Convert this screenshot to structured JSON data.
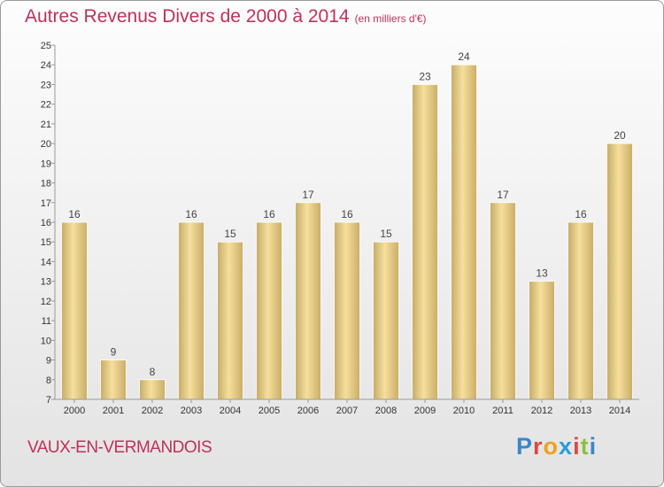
{
  "header": {
    "title": "Autres Revenus Divers de 2000 à 2014",
    "subtitle": "(en milliers d'€)"
  },
  "footer": {
    "town": "VAUX-EN-VERMANDOIS",
    "logo": "Proxiti"
  },
  "colors": {
    "title": "#c0305a",
    "bar_light": "#f6df9c",
    "bar_dark": "#c5ab67",
    "logo_letters": [
      "#3b86c8",
      "#e0473b",
      "#f0a020",
      "#2a9cd8",
      "#e0473b",
      "#8cc13f",
      "#3b86c8"
    ]
  },
  "chart_data": {
    "type": "bar",
    "title": "Autres Revenus Divers de 2000 à 2014",
    "subtitle": "(en milliers d'€)",
    "categories": [
      "2000",
      "2001",
      "2002",
      "2003",
      "2004",
      "2005",
      "2006",
      "2007",
      "2008",
      "2009",
      "2010",
      "2011",
      "2012",
      "2013",
      "2014"
    ],
    "values": [
      16,
      9,
      8,
      16,
      15,
      16,
      17,
      16,
      15,
      23,
      24,
      17,
      13,
      16,
      20
    ],
    "ylim": [
      7,
      25
    ],
    "yticks": [
      7,
      8,
      9,
      10,
      11,
      12,
      13,
      14,
      15,
      16,
      17,
      18,
      19,
      20,
      21,
      22,
      23,
      24,
      25
    ],
    "grid": false,
    "legend": "none"
  }
}
